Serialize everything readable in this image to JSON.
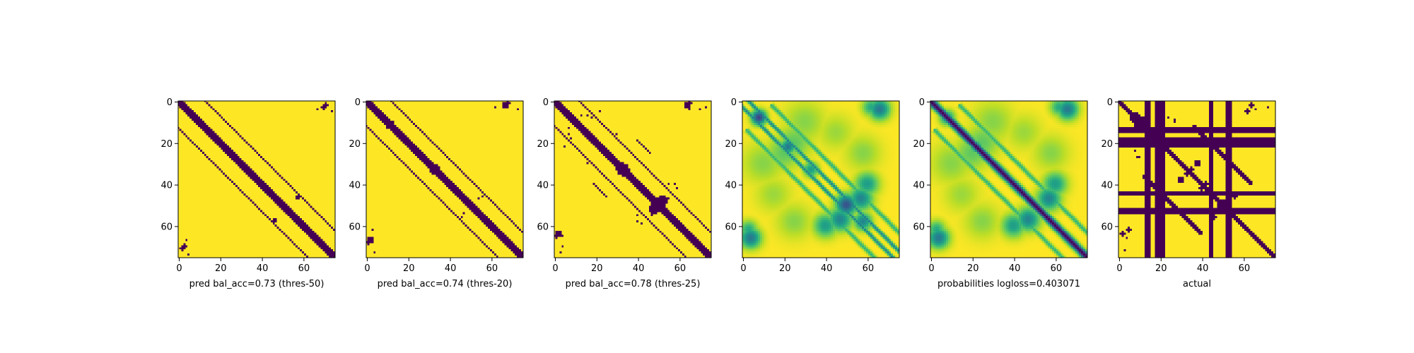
{
  "colors": {
    "low": "#440154",
    "high": "#fde725",
    "colormap": "viridis"
  },
  "chart_data": [
    {
      "type": "heatmap",
      "kind": "binary",
      "xlabel": "pred bal_acc=0.73 (thres-50)",
      "xticks": [
        "0",
        "20",
        "40",
        "60"
      ],
      "yticks": [
        "0",
        "20",
        "40",
        "60"
      ],
      "matrix_size": 76,
      "pattern": {
        "diag_width": 1.7,
        "bands": [
          {
            "center": 13,
            "range": [
              0,
              76
            ],
            "width": 0.6
          },
          {
            "center": 62,
            "range": [
              63,
              69
            ],
            "width": 0.6
          },
          {
            "center": 63,
            "range": [
              62,
              72
            ],
            "width": 0.6
          },
          {
            "center": 65,
            "range": [
              70,
              76
            ],
            "width": 0.6
          },
          {
            "center": 67,
            "range": [
              0,
              4
            ],
            "width": 0.6
          }
        ],
        "blobs": [
          [
            46,
            58,
            0.9
          ],
          [
            47,
            57,
            0.7
          ],
          [
            70,
            3,
            1.2
          ],
          [
            71,
            2,
            0.9
          ],
          [
            74,
            5,
            0.6
          ],
          [
            4,
            67,
            0.7
          ]
        ],
        "holes": [],
        "stripes": []
      }
    },
    {
      "type": "heatmap",
      "kind": "binary",
      "xlabel": "pred bal_acc=0.74 (thres-20)",
      "xticks": [
        "0",
        "20",
        "40",
        "60"
      ],
      "yticks": [
        "0",
        "20",
        "40",
        "60"
      ],
      "matrix_size": 76,
      "pattern": {
        "diag_width": 2.0,
        "bands": [
          {
            "center": 12,
            "range": [
              0,
              76
            ],
            "width": 0.6
          },
          {
            "center": 61,
            "range": [
              62,
              70
            ],
            "width": 0.6
          },
          {
            "center": 64,
            "range": [
              63,
              74
            ],
            "width": 0.6
          },
          {
            "center": 66,
            "range": [
              70,
              76
            ],
            "width": 0.6
          },
          {
            "center": 64,
            "range": [
              0,
              6
            ],
            "width": 0.6
          }
        ],
        "blobs": [
          [
            33,
            33,
            2.0
          ],
          [
            40,
            52,
            0.7
          ],
          [
            46,
            56,
            0.8
          ],
          [
            47,
            54,
            0.7
          ],
          [
            67,
            2,
            1.3
          ],
          [
            68,
            1,
            1.0
          ],
          [
            73,
            4,
            0.6
          ],
          [
            3,
            62,
            0.6
          ],
          [
            10,
            13,
            0.6
          ]
        ],
        "holes": [],
        "stripes": []
      }
    },
    {
      "type": "heatmap",
      "kind": "binary",
      "xlabel": "pred bal_acc=0.78 (thres-25)",
      "xticks": [
        "0",
        "20",
        "40",
        "60"
      ],
      "yticks": [
        "0",
        "20",
        "40",
        "60"
      ],
      "matrix_size": 76,
      "pattern": {
        "diag_width": 2.2,
        "bands": [
          {
            "center": 12,
            "range": [
              0,
              76
            ],
            "width": 0.6
          },
          {
            "center": 62,
            "range": [
              63,
              72
            ],
            "width": 0.7
          },
          {
            "center": 65,
            "range": [
              70,
              76
            ],
            "width": 0.6
          },
          {
            "center": 65,
            "range": [
              0,
              6
            ],
            "width": 0.6
          },
          {
            "center": 21,
            "range": [
              29,
              36
            ],
            "width": 0.6
          }
        ],
        "blobs": [
          [
            33,
            33,
            2.6
          ],
          [
            50,
            50,
            3.0
          ],
          [
            52,
            48,
            2.4
          ],
          [
            45,
            57,
            0.8
          ],
          [
            47,
            55,
            0.8
          ],
          [
            40,
            55,
            0.7
          ],
          [
            58,
            40,
            0.8
          ],
          [
            59,
            42,
            0.8
          ],
          [
            64,
            2,
            1.5
          ],
          [
            65,
            1,
            1.2
          ],
          [
            70,
            4,
            0.8
          ],
          [
            73,
            3,
            0.6
          ],
          [
            5,
            22,
            0.5
          ],
          [
            8,
            18,
            0.5
          ],
          [
            13,
            7,
            0.5
          ],
          [
            16,
            7,
            0.5
          ],
          [
            16,
            30,
            0.5
          ],
          [
            3,
            64,
            0.7
          ],
          [
            4,
            65,
            0.7
          ]
        ],
        "holes": [],
        "stripes": []
      }
    },
    {
      "type": "heatmap",
      "kind": "probability",
      "xlabel": "",
      "xticks": [
        "0",
        "20",
        "40",
        "60"
      ],
      "yticks": [
        "0",
        "20",
        "40",
        "60"
      ],
      "matrix_size": 76,
      "pattern": {
        "diag_width": 0.0,
        "bands": [
          {
            "center": 3,
            "range": [
              0,
              76
            ],
            "width": 0.9,
            "strength": 0.55
          },
          {
            "center": -3,
            "range": [
              0,
              76
            ],
            "width": 0.9,
            "strength": 0.55
          },
          {
            "center": 12,
            "range": [
              8,
              70
            ],
            "width": 1.1,
            "strength": 0.35
          },
          {
            "center": -12,
            "range": [
              8,
              70
            ],
            "width": 1.1,
            "strength": 0.35
          }
        ],
        "blobs": [
          [
            8,
            8,
            2.5,
            0.8
          ],
          [
            22,
            22,
            2.5,
            0.6
          ],
          [
            33,
            33,
            2.5,
            0.45
          ],
          [
            50,
            50,
            3.5,
            0.75
          ],
          [
            58,
            58,
            3.0,
            0.55
          ],
          [
            47,
            57,
            4.0,
            0.55
          ],
          [
            57,
            47,
            4.0,
            0.55
          ],
          [
            40,
            60,
            4.0,
            0.45
          ],
          [
            60,
            40,
            4.0,
            0.45
          ],
          [
            66,
            4,
            3.5,
            0.6
          ],
          [
            4,
            66,
            3.5,
            0.6
          ],
          [
            3,
            62,
            3.0,
            0.4
          ],
          [
            62,
            3,
            3.0,
            0.4
          ],
          [
            20,
            25,
            6.0,
            0.25
          ],
          [
            25,
            20,
            6.0,
            0.25
          ],
          [
            10,
            30,
            7.0,
            0.18
          ],
          [
            30,
            10,
            7.0,
            0.18
          ],
          [
            15,
            45,
            6.0,
            0.15
          ],
          [
            45,
            15,
            6.0,
            0.15
          ],
          [
            58,
            25,
            6.0,
            0.18
          ],
          [
            25,
            58,
            6.0,
            0.18
          ]
        ],
        "holes": [],
        "stripes": []
      }
    },
    {
      "type": "heatmap",
      "kind": "probability",
      "xlabel": "probabilities logloss=0.403071",
      "xticks": [
        "0",
        "20",
        "40",
        "60"
      ],
      "yticks": [
        "0",
        "20",
        "40",
        "60"
      ],
      "matrix_size": 76,
      "pattern": {
        "diag_width": 1.8,
        "bands": [
          {
            "center": 12,
            "range": [
              8,
              70
            ],
            "width": 1.1,
            "strength": 0.35
          },
          {
            "center": -12,
            "range": [
              8,
              70
            ],
            "width": 1.1,
            "strength": 0.35
          }
        ],
        "blobs": [
          [
            8,
            8,
            2.5,
            0.5
          ],
          [
            22,
            22,
            2.5,
            0.5
          ],
          [
            47,
            57,
            4.0,
            0.55
          ],
          [
            57,
            47,
            4.0,
            0.55
          ],
          [
            40,
            60,
            4.0,
            0.45
          ],
          [
            60,
            40,
            4.0,
            0.45
          ],
          [
            66,
            4,
            3.5,
            0.6
          ],
          [
            4,
            66,
            3.5,
            0.6
          ],
          [
            3,
            62,
            3.0,
            0.4
          ],
          [
            62,
            3,
            3.0,
            0.4
          ],
          [
            20,
            25,
            6.0,
            0.25
          ],
          [
            25,
            20,
            6.0,
            0.25
          ],
          [
            10,
            30,
            7.0,
            0.18
          ],
          [
            30,
            10,
            7.0,
            0.18
          ],
          [
            15,
            45,
            6.0,
            0.15
          ],
          [
            45,
            15,
            6.0,
            0.15
          ],
          [
            58,
            25,
            6.0,
            0.18
          ],
          [
            25,
            58,
            6.0,
            0.18
          ]
        ],
        "holes": [],
        "stripes": []
      }
    },
    {
      "type": "heatmap",
      "kind": "binary",
      "xlabel": "actual",
      "xticks": [
        "0",
        "20",
        "40",
        "60"
      ],
      "yticks": [
        "0",
        "20",
        "40",
        "60"
      ],
      "matrix_size": 76,
      "pattern": {
        "diag_width": 1.4,
        "bands": [
          {
            "center": -24,
            "range": [
              24,
              52
            ],
            "width": 0.9
          },
          {
            "center": 62,
            "range": [
              63,
              70
            ],
            "width": 0.6
          },
          {
            "center": 64,
            "range": [
              66,
              76
            ],
            "width": 0.6
          },
          {
            "center": 63,
            "range": [
              0,
              6
            ],
            "width": 0.6
          }
        ],
        "blobs": [
          [
            8,
            8,
            2.0
          ],
          [
            9,
            11,
            1.5
          ],
          [
            30,
            38,
            1.3
          ],
          [
            33,
            35,
            1.2
          ],
          [
            50,
            50,
            2.0
          ],
          [
            55,
            55,
            1.5
          ],
          [
            40,
            42,
            1.2
          ],
          [
            46,
            56,
            1.0
          ],
          [
            53,
            45,
            1.0
          ],
          [
            62,
            5,
            1.2
          ],
          [
            64,
            2,
            1.0
          ],
          [
            72,
            3,
            0.8
          ],
          [
            4,
            66,
            0.8
          ],
          [
            3,
            72,
            0.8
          ],
          [
            8,
            24,
            0.8
          ],
          [
            10,
            27,
            0.7
          ],
          [
            22,
            5,
            0.8
          ],
          [
            27,
            9,
            0.7
          ],
          [
            60,
            36,
            0.8
          ],
          [
            36,
            60,
            0.8
          ]
        ],
        "holes": [],
        "stripes": [
          {
            "axis": "col",
            "start": 13,
            "end": 15
          },
          {
            "axis": "col",
            "start": 20,
            "end": 22
          },
          {
            "axis": "col",
            "start": 44,
            "end": 45
          },
          {
            "axis": "col",
            "start": 52,
            "end": 54
          },
          {
            "axis": "row",
            "start": 14,
            "end": 15
          },
          {
            "axis": "row",
            "start": 18,
            "end": 19
          },
          {
            "axis": "row",
            "start": 44,
            "end": 45
          },
          {
            "axis": "row",
            "start": 53,
            "end": 54
          }
        ]
      }
    }
  ]
}
